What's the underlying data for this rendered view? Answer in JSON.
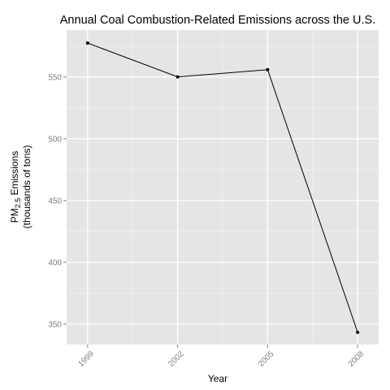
{
  "chart_data": {
    "type": "line",
    "title": "Annual Coal Combustion-Related Emissions across the U.S.",
    "xlabel": "Year",
    "ylabel": {
      "prefix": "PM",
      "subscript": "2.5",
      "suffix": " Emissions",
      "line2": "(thousands of tons)"
    },
    "x": [
      1999,
      2002,
      2005,
      2008
    ],
    "x_tick_labels": [
      "1999",
      "2002",
      "2005",
      "2008"
    ],
    "y_ticks": [
      350,
      400,
      450,
      500,
      550
    ],
    "y_tick_labels": [
      "350",
      "400",
      "450",
      "500",
      "550"
    ],
    "xlim": [
      1998.3,
      2008.7
    ],
    "ylim": [
      333.5,
      588
    ],
    "grid": true,
    "series": [
      {
        "values": [
          577.5,
          550.1,
          555.9,
          343.4
        ]
      }
    ],
    "colors": {
      "panel": "#e5e5e5",
      "grid_major": "#ffffff",
      "grid_minor": "#f2f2f2",
      "line": "#000000",
      "tick_label": "#7f7f7f"
    }
  }
}
